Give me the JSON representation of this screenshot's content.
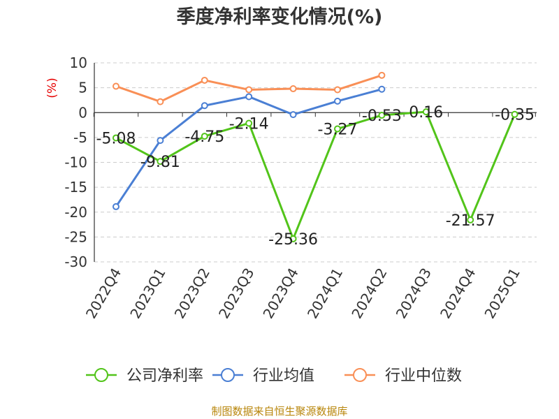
{
  "chart_data": {
    "type": "line",
    "title": "季度净利率变化情况(%)",
    "ylabel": "(%)",
    "categories": [
      "2022Q4",
      "2023Q1",
      "2023Q2",
      "2023Q3",
      "2023Q4",
      "2024Q1",
      "2024Q2",
      "2024Q3",
      "2024Q4",
      "2025Q1"
    ],
    "ylim": [
      -30,
      10
    ],
    "yticks": [
      10,
      5,
      0,
      -5,
      -10,
      -15,
      -20,
      -25,
      -30
    ],
    "grid": true,
    "legend_position": "bottom",
    "series": [
      {
        "name": "公司净利率",
        "color": "#52c41a",
        "values": [
          -5.08,
          -9.81,
          -4.75,
          -2.14,
          -25.36,
          -3.27,
          -0.53,
          0.16,
          -21.57,
          -0.35
        ],
        "labels": [
          "-5.08",
          "-9.81",
          "-4.75",
          "-2.14",
          "-25.36",
          "-3.27",
          "-0.53",
          "0.16",
          "-21.57",
          "-0.35"
        ]
      },
      {
        "name": "行业均值",
        "color": "#4a7fd4",
        "values": [
          -18.9,
          -5.6,
          1.4,
          3.2,
          -0.4,
          2.3,
          4.7,
          null,
          null,
          null
        ]
      },
      {
        "name": "行业中位数",
        "color": "#f98f56",
        "values": [
          5.3,
          2.2,
          6.5,
          4.6,
          4.8,
          4.6,
          7.5,
          null,
          null,
          null
        ]
      }
    ]
  },
  "source": "制图数据来自恒生聚源数据库"
}
